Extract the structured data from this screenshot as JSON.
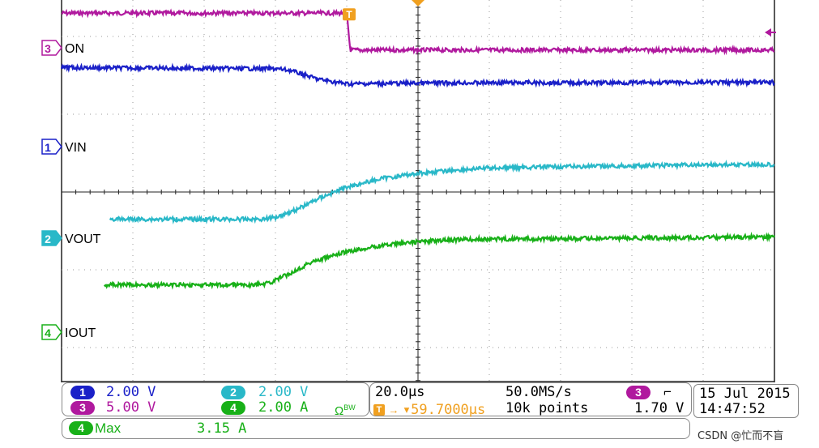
{
  "colors": {
    "ch1": "#1a20c8",
    "ch2": "#29b8c8",
    "ch3": "#b0199e",
    "ch4": "#18b018",
    "trigger": "#f0a020",
    "grid": "#9a9a9a",
    "frame": "#222222"
  },
  "channels": [
    {
      "id": "ch3",
      "number": "3",
      "label": "ON",
      "color": "#b0199e"
    },
    {
      "id": "ch1",
      "number": "1",
      "label": "VIN",
      "color": "#1a20c8"
    },
    {
      "id": "ch2",
      "number": "2",
      "label": "VOUT",
      "color": "#29b8c8"
    },
    {
      "id": "ch4",
      "number": "4",
      "label": "IOUT",
      "color": "#18b018"
    }
  ],
  "traces": {
    "ch3": [
      [
        0,
        0.15
      ],
      [
        4.0,
        0.15
      ],
      [
        4.05,
        1.1
      ],
      [
        10,
        1.1
      ]
    ],
    "ch1": [
      [
        0,
        1.55
      ],
      [
        3.0,
        1.58
      ],
      [
        3.2,
        1.62
      ],
      [
        3.6,
        1.85
      ],
      [
        4.0,
        1.97
      ],
      [
        5.0,
        1.95
      ],
      [
        6.0,
        1.94
      ],
      [
        8.0,
        1.94
      ],
      [
        10,
        1.93
      ]
    ],
    "ch2": [
      [
        0.68,
        5.45
      ],
      [
        2.8,
        5.45
      ],
      [
        3.0,
        5.4
      ],
      [
        3.3,
        5.2
      ],
      [
        3.6,
        4.92
      ],
      [
        4.0,
        4.62
      ],
      [
        4.5,
        4.4
      ],
      [
        5.0,
        4.27
      ],
      [
        5.5,
        4.19
      ],
      [
        6.0,
        4.13
      ],
      [
        7.0,
        4.1
      ],
      [
        8.0,
        4.08
      ],
      [
        9.0,
        4.05
      ],
      [
        10,
        4.04
      ]
    ],
    "ch4": [
      [
        0.6,
        7.14
      ],
      [
        2.7,
        7.14
      ],
      [
        2.9,
        7.1
      ],
      [
        3.2,
        6.85
      ],
      [
        3.5,
        6.55
      ],
      [
        4.0,
        6.29
      ],
      [
        4.5,
        6.12
      ],
      [
        5.0,
        6.03
      ],
      [
        5.5,
        5.98
      ],
      [
        6.0,
        5.96
      ],
      [
        7.0,
        5.95
      ],
      [
        8.0,
        5.94
      ],
      [
        9.0,
        5.92
      ],
      [
        10,
        5.9
      ]
    ]
  },
  "trigger_marker": {
    "label": "T"
  },
  "status": {
    "ch1_num": "1",
    "ch1_scale": "2.00 V",
    "ch2_num": "2",
    "ch2_scale": "2.00 V",
    "ch3_num": "3",
    "ch3_scale": "5.00 V",
    "ch4_num": "4",
    "ch4_scale": "2.00 A",
    "ch4_extra": "Ω",
    "ch4_extra_sub": "BW"
  },
  "timebase": {
    "horizontal_scale": "20.0µs",
    "sample_rate": "50.0MS/s",
    "trigger_position": "▾59.7000µs",
    "record_length": "10k points",
    "trigger_source": "3",
    "trigger_slope": "⌐",
    "trigger_level": "1.70 V"
  },
  "datetime": {
    "date": "15 Jul  2015",
    "time": "14:47:52"
  },
  "measurement": {
    "channel": "4",
    "name": "Max",
    "value": "3.15 A"
  },
  "watermark": "CSDN @忙而不盲"
}
